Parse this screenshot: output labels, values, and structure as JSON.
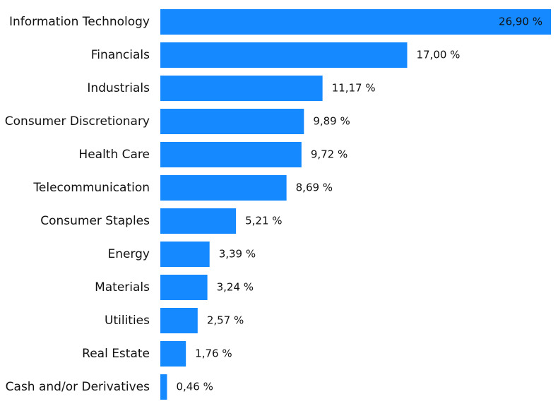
{
  "chart_data": {
    "type": "bar",
    "orientation": "horizontal",
    "categories": [
      "Information Technology",
      "Financials",
      "Industrials",
      "Consumer Discretionary",
      "Health Care",
      "Telecommunication",
      "Consumer Staples",
      "Energy",
      "Materials",
      "Utilities",
      "Real Estate",
      "Cash and/or Derivatives"
    ],
    "values": [
      26.9,
      17.0,
      11.17,
      9.89,
      9.72,
      8.69,
      5.21,
      3.39,
      3.24,
      2.57,
      1.76,
      0.46
    ],
    "value_labels": [
      "26,90 %",
      "17,00 %",
      "11,17 %",
      "9,89 %",
      "9,72 %",
      "8,69 %",
      "5,21 %",
      "3,39 %",
      "3,24 %",
      "2,57 %",
      "1,76 %",
      "0,46 %"
    ],
    "color": "#1589ff"
  }
}
